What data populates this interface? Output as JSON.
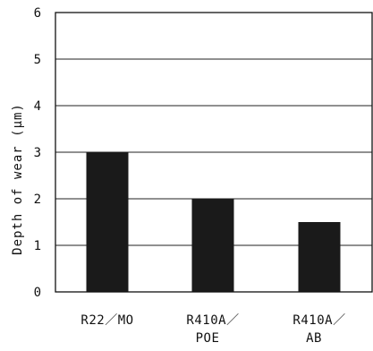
{
  "chart_data": {
    "type": "bar",
    "ylabel": "Depth of wear (μm)",
    "ylim": [
      0,
      6
    ],
    "yticks": [
      0,
      1,
      2,
      3,
      4,
      5,
      6
    ],
    "grid": true,
    "categories": [
      [
        "R22／MO"
      ],
      [
        "R410A／",
        "POE"
      ],
      [
        "R410A／",
        "AB"
      ]
    ],
    "values": [
      3.0,
      2.0,
      1.5
    ],
    "bar_color": "#1a1a1a"
  }
}
